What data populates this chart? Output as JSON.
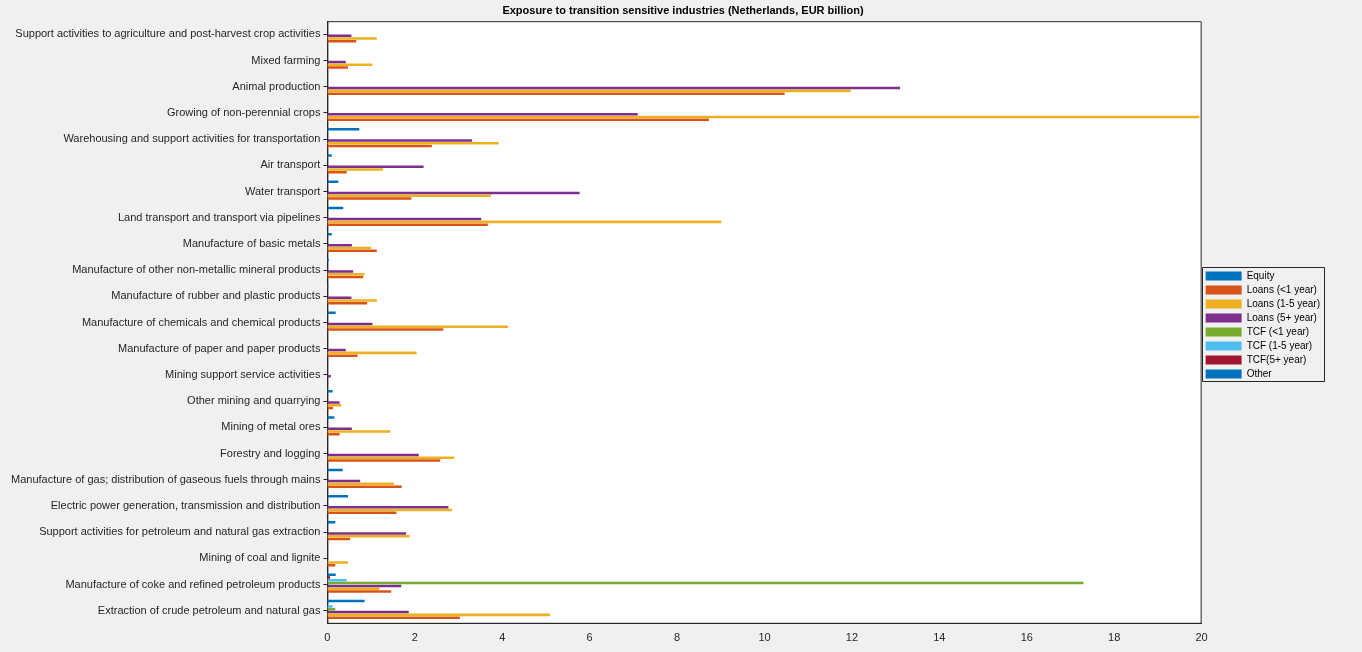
{
  "chart_data": {
    "type": "bar",
    "orientation": "horizontal",
    "title": "Exposure to transition sensitive industries (Netherlands, EUR billion)",
    "categories": [
      "Support activities to agriculture and post-harvest crop activities",
      "Mixed farming",
      "Animal production",
      "Growing of non-perennial crops",
      "Warehousing and support activities for transportation",
      "Air transport",
      "Water transport",
      "Land transport and transport via pipelines",
      "Manufacture of basic metals",
      "Manufacture of other non-metallic mineral products",
      "Manufacture of rubber and plastic products",
      "Manufacture of chemicals and chemical products",
      "Manufacture of paper and paper products",
      "Mining support service activities",
      "Other mining and quarrying",
      "Mining of metal ores",
      "Forestry and logging",
      "Manufacture of gas; distribution of gaseous fuels through mains",
      "Electric power generation, transmission and distribution",
      "Support activities for petroleum and natural gas extraction",
      "Mining of coal and lignite",
      "Manufacture of coke and refined petroleum products",
      "Extraction of crude petroleum and natural gas"
    ],
    "series": [
      {
        "name": "Equity",
        "color": "#0072bd",
        "values": [
          0,
          0,
          0,
          0,
          0,
          0,
          0,
          0,
          0,
          0,
          0,
          0,
          0,
          0,
          0,
          0,
          0,
          0,
          0,
          0,
          0,
          0,
          0
        ]
      },
      {
        "name": "Loans (<1 year)",
        "color": "#d95319",
        "values": [
          0.66,
          0.47,
          10.46,
          8.73,
          2.39,
          0.44,
          1.92,
          3.67,
          1.13,
          0.82,
          0.91,
          2.65,
          0.69,
          0,
          0.13,
          0.28,
          2.58,
          1.7,
          1.58,
          0.52,
          0.18,
          1.46,
          3.03
        ]
      },
      {
        "name": "Loans (1-5 year)",
        "color": "#edb120",
        "values": [
          1.13,
          1.03,
          11.97,
          19.95,
          3.92,
          1.27,
          3.74,
          9.01,
          1.0,
          0.85,
          1.13,
          4.13,
          2.04,
          null,
          0.32,
          1.44,
          2.9,
          1.52,
          2.85,
          1.88,
          0.47,
          1.19,
          5.09
        ]
      },
      {
        "name": "Loans (5+ year)",
        "color": "#7e2f8e",
        "values": [
          0.55,
          0.42,
          13.1,
          7.1,
          3.31,
          2.2,
          5.77,
          3.52,
          0.56,
          0.59,
          0.55,
          1.03,
          0.42,
          0.08,
          0.28,
          0.56,
          2.09,
          0.75,
          2.77,
          1.8,
          0,
          1.69,
          1.86
        ]
      },
      {
        "name": "TCF (<1 year)",
        "color": "#77ac30",
        "values": [
          0,
          0,
          0,
          0,
          0,
          0,
          0,
          0,
          0,
          0,
          0,
          0,
          0,
          0,
          0,
          0,
          0,
          0,
          0,
          0,
          0,
          17.3,
          0.18
        ]
      },
      {
        "name": "TCF (1-5 year)",
        "color": "#4dbeee",
        "values": [
          0,
          0,
          0,
          0,
          0,
          0,
          0,
          0,
          0,
          0,
          0,
          0,
          0,
          0,
          0,
          0,
          0,
          0,
          0,
          0,
          0,
          0.44,
          0.12
        ]
      },
      {
        "name": "TCF(5+ year)",
        "color": "#a2142f",
        "values": [
          0,
          0,
          0,
          0,
          0,
          0,
          0,
          0,
          0,
          0,
          0,
          0,
          0,
          0,
          0,
          0,
          0,
          0,
          0,
          0,
          0,
          0.06,
          0
        ]
      },
      {
        "name": "Other",
        "color": "#0072bd",
        "values": [
          0,
          0,
          0,
          0,
          0.73,
          0.1,
          0.25,
          0.36,
          0.1,
          0.03,
          0.02,
          0.19,
          0,
          0,
          0.12,
          0.16,
          0,
          0.35,
          0.47,
          0.18,
          0,
          0.19,
          0.85
        ]
      }
    ],
    "xlim": [
      0,
      20
    ],
    "xticks": [
      0,
      2,
      4,
      6,
      8,
      10,
      12,
      14,
      16,
      18,
      20
    ],
    "grid": false,
    "legend": "right"
  }
}
